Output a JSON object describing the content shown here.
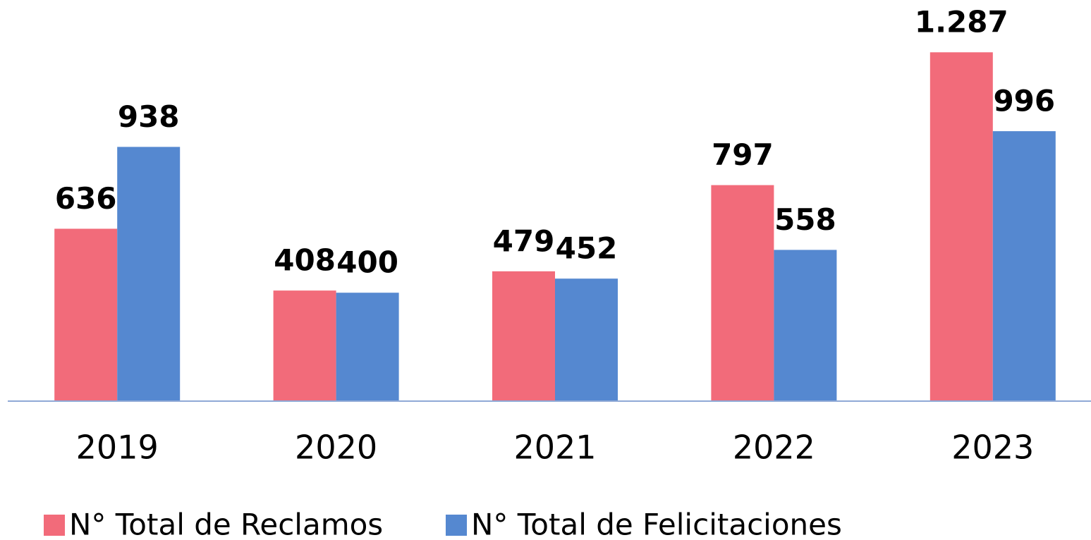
{
  "chart_data": {
    "type": "bar",
    "categories": [
      "2019",
      "2020",
      "2021",
      "2022",
      "2023"
    ],
    "series": [
      {
        "name": "N° Total de Reclamos",
        "color": "#f26b7a",
        "values": [
          636,
          408,
          479,
          797,
          1287
        ],
        "value_labels": [
          "636",
          "408",
          "479",
          "797",
          "1.287"
        ]
      },
      {
        "name": "N° Total de Felicitaciones",
        "color": "#5588d0",
        "values": [
          938,
          400,
          452,
          558,
          996
        ],
        "value_labels": [
          "938",
          "400",
          "452",
          "558",
          "996"
        ]
      }
    ],
    "ylim": [
      0,
      1480
    ],
    "legend": "bottom"
  }
}
